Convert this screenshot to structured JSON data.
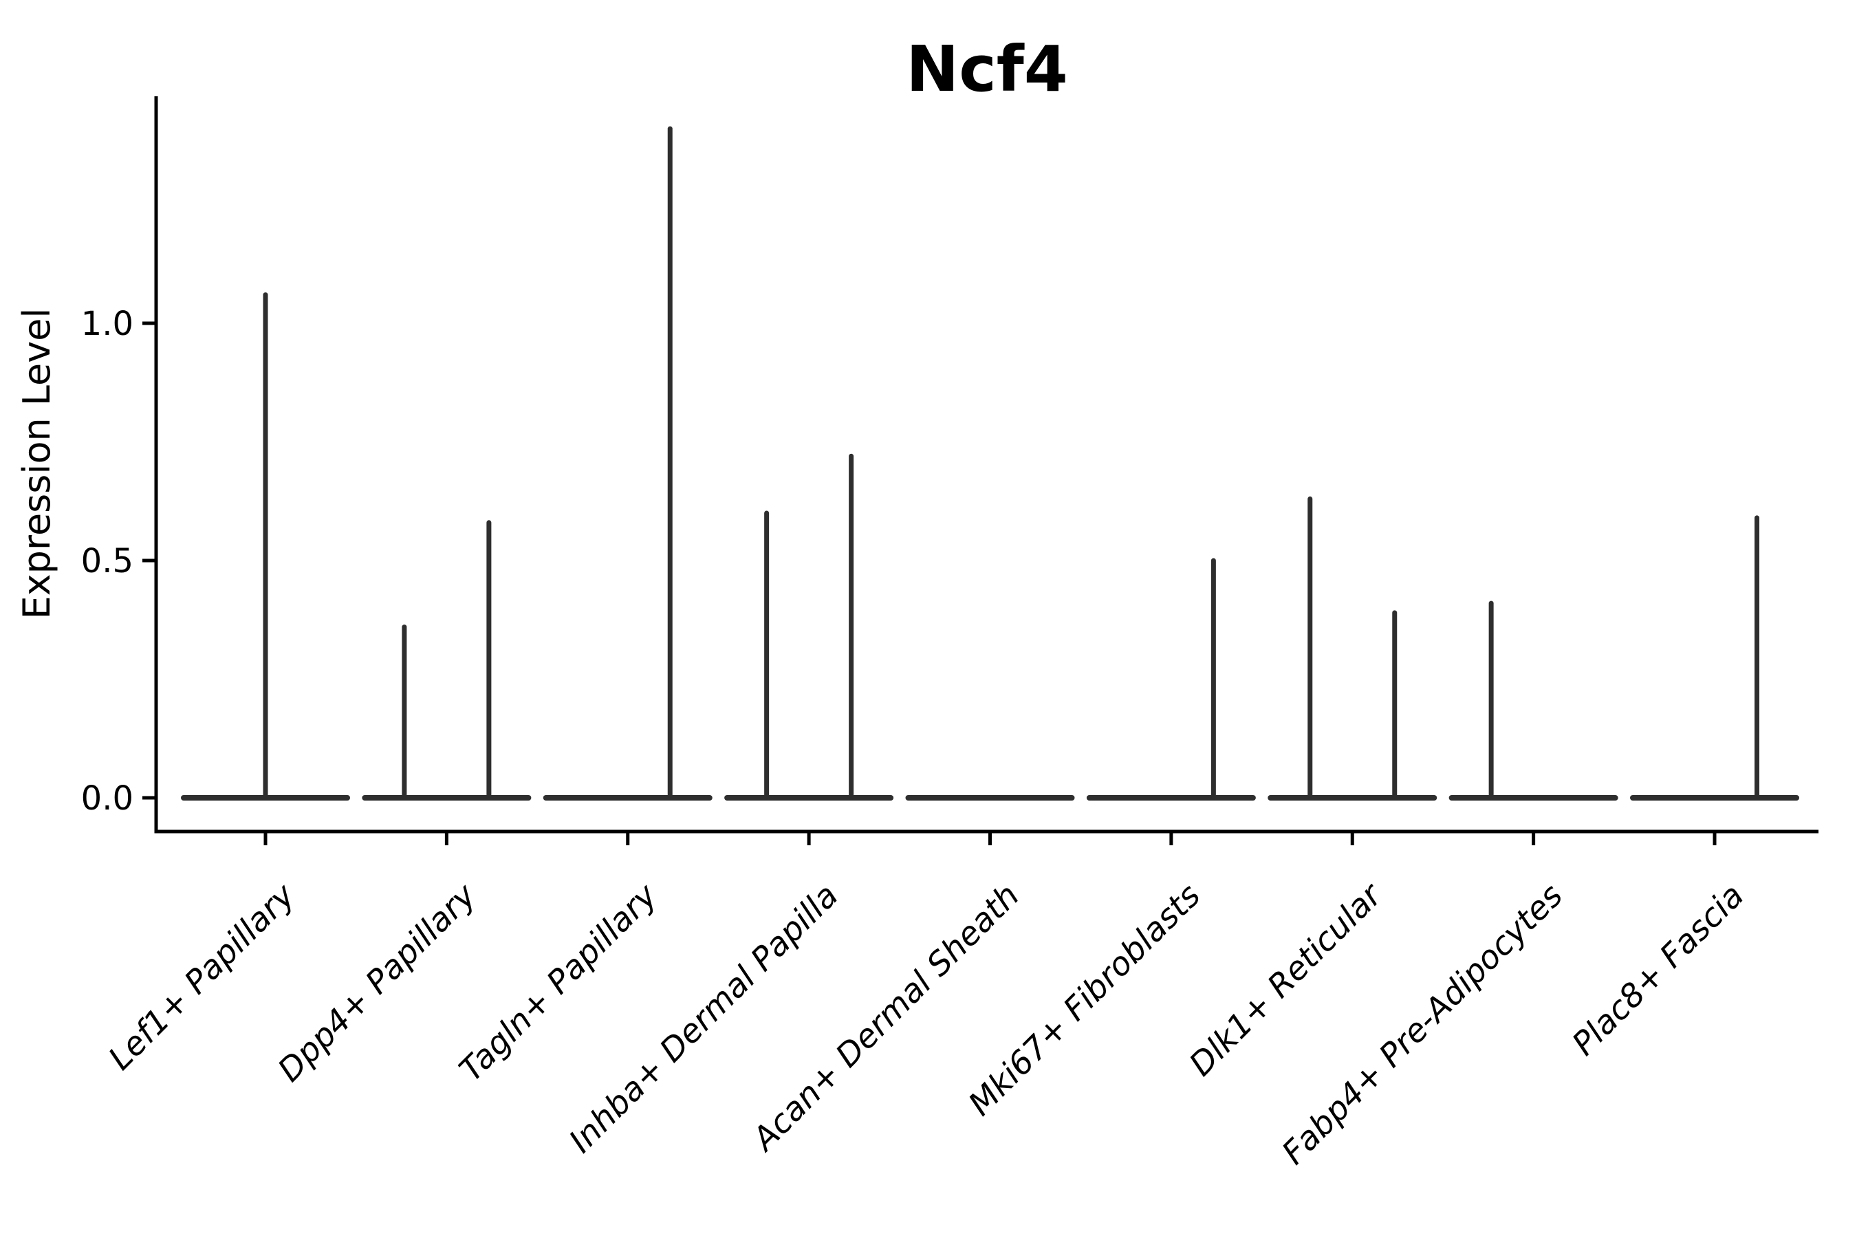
{
  "chart_data": {
    "type": "violin",
    "title": "Ncf4",
    "ylabel": "Expression Level",
    "xlabel": "",
    "yticks": [
      0.0,
      0.5,
      1.0
    ],
    "ylim": [
      -0.07,
      1.48
    ],
    "grid": false,
    "legend": null,
    "colors": {
      "violin_stroke": "#2e2e2e",
      "axis": "#000000",
      "background": "#ffffff"
    },
    "categories": [
      {
        "label": "Lef1+ Papillary",
        "violins": [
          {
            "position": "full",
            "max_expression": 1.06
          }
        ]
      },
      {
        "label": "Dpp4+ Papillary",
        "violins": [
          {
            "position": "left",
            "max_expression": 0.36
          },
          {
            "position": "right",
            "max_expression": 0.58
          }
        ]
      },
      {
        "label": "Tagln+ Papillary",
        "violins": [
          {
            "position": "left",
            "max_expression": 0.0
          },
          {
            "position": "right",
            "max_expression": 1.41
          }
        ]
      },
      {
        "label": "Inhba+ Dermal Papilla",
        "violins": [
          {
            "position": "left",
            "max_expression": 0.6
          },
          {
            "position": "right",
            "max_expression": 0.72
          }
        ]
      },
      {
        "label": "Acan+ Dermal Sheath",
        "violins": [
          {
            "position": "full",
            "max_expression": 0.0
          }
        ]
      },
      {
        "label": "Mki67+ Fibroblasts",
        "violins": [
          {
            "position": "left",
            "max_expression": 0.0
          },
          {
            "position": "right",
            "max_expression": 0.5
          }
        ]
      },
      {
        "label": "Dlk1+ Reticular",
        "violins": [
          {
            "position": "left",
            "max_expression": 0.63
          },
          {
            "position": "right",
            "max_expression": 0.39
          }
        ]
      },
      {
        "label": "Fabp4+ Pre-Adipocytes",
        "violins": [
          {
            "position": "left",
            "max_expression": 0.41
          },
          {
            "position": "right",
            "max_expression": 0.0
          }
        ]
      },
      {
        "label": "Plac8+ Fascia",
        "violins": [
          {
            "position": "left",
            "max_expression": 0.0
          },
          {
            "position": "right",
            "max_expression": 0.59
          }
        ]
      }
    ]
  }
}
